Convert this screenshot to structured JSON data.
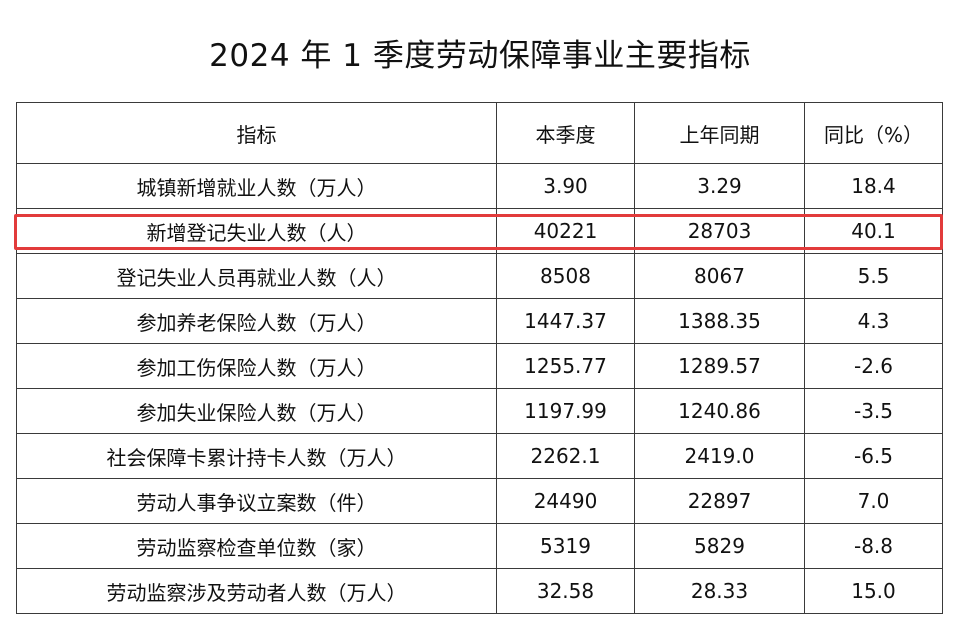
{
  "title": "2024 年 1 季度劳动保障事业主要指标",
  "table": {
    "headers": [
      "指标",
      "本季度",
      "上年同期",
      "同比（%）"
    ],
    "rows": [
      [
        "城镇新增就业人数（万人）",
        "3.90",
        "3.29",
        "18.4"
      ],
      [
        "新增登记失业人数（人）",
        "40221",
        "28703",
        "40.1"
      ],
      [
        "登记失业人员再就业人数（人）",
        "8508",
        "8067",
        "5.5"
      ],
      [
        "参加养老保险人数（万人）",
        "1447.37",
        "1388.35",
        "4.3"
      ],
      [
        "参加工伤保险人数（万人）",
        "1255.77",
        "1289.57",
        "-2.6"
      ],
      [
        "参加失业保险人数（万人）",
        "1197.99",
        "1240.86",
        "-3.5"
      ],
      [
        "社会保障卡累计持卡人数（万人）",
        "2262.1",
        "2419.0",
        "-6.5"
      ],
      [
        "劳动人事争议立案数（件）",
        "24490",
        "22897",
        "7.0"
      ],
      [
        "劳动监察检查单位数（家）",
        "5319",
        "5829",
        "-8.8"
      ],
      [
        "劳动监察涉及劳动者人数（万人）",
        "32.58",
        "28.33",
        "15.0"
      ]
    ],
    "highlighted_row": 1,
    "highlight_color": "#e23b3b",
    "border_color": "#3a3a3a"
  }
}
